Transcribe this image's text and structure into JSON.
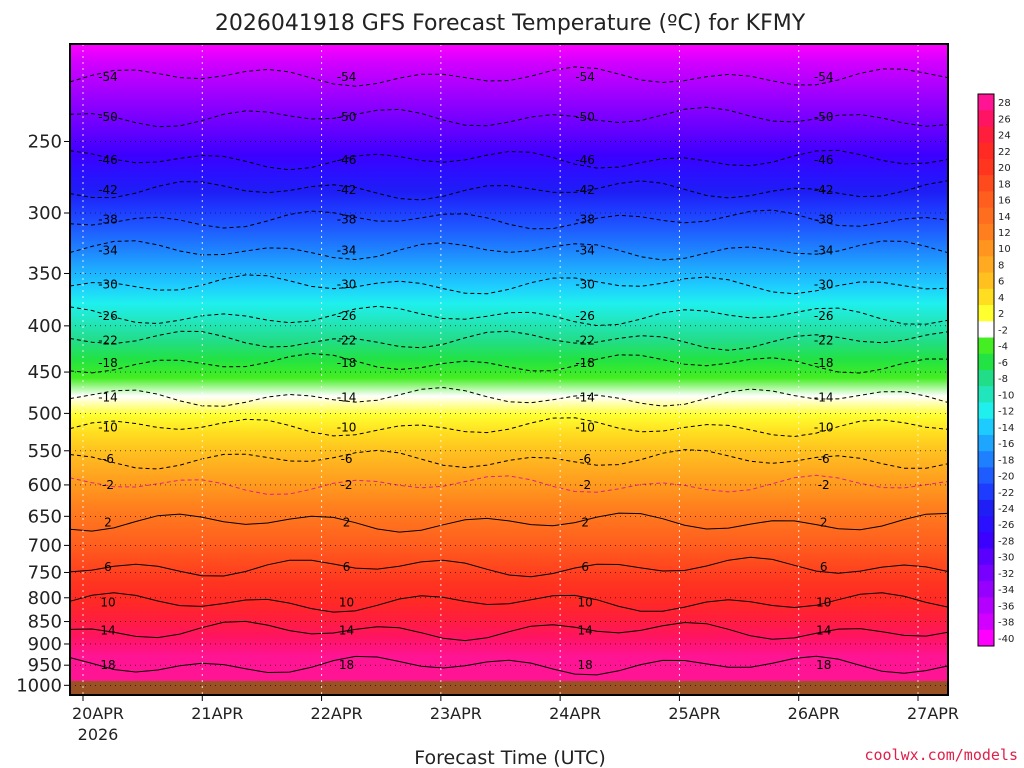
{
  "chart_data": {
    "type": "heatmap",
    "title": "2026041918 GFS Forecast Temperature (ºC) for KFMY",
    "xlabel": "Forecast Time (UTC)",
    "ylabel": "",
    "y_scale": "log",
    "y_inverted": true,
    "ylim": [
      1025,
      195
    ],
    "y_ticks": [
      250,
      300,
      350,
      400,
      450,
      500,
      550,
      600,
      650,
      700,
      750,
      800,
      850,
      900,
      950,
      1000
    ],
    "y_tick_labels": [
      "250",
      "300",
      "350",
      "400",
      "450",
      "500",
      "550",
      "600",
      "650",
      "700",
      "750",
      "800",
      "850",
      "900",
      "950",
      "1000"
    ],
    "x_ticks": [
      "20APR",
      "21APR",
      "22APR",
      "23APR",
      "24APR",
      "25APR",
      "26APR",
      "27APR"
    ],
    "x_tick_year": "2026",
    "grid": true,
    "colorbar": {
      "position": "right",
      "labels": [
        "28",
        "26",
        "24",
        "22",
        "20",
        "18",
        "16",
        "14",
        "12",
        "10",
        "8",
        "6",
        "4",
        "2",
        "-2",
        "-4",
        "-6",
        "-8",
        "-10",
        "-12",
        "-14",
        "-16",
        "-18",
        "-20",
        "-22",
        "-24",
        "-26",
        "-28",
        "-30",
        "-32",
        "-34",
        "-36",
        "-38",
        "-40"
      ],
      "colors": [
        "#ff1493",
        "#ff1463",
        "#ff1e3c",
        "#ff2a24",
        "#ff3520",
        "#ff4a1e",
        "#ff5e1e",
        "#ff6e1e",
        "#ff7f1e",
        "#ff951e",
        "#ffaa20",
        "#ffc020",
        "#ffdd20",
        "#ffff30",
        "#ffffff",
        "#44ee22",
        "#22e244",
        "#22dd88",
        "#22e6bb",
        "#1ff0ee",
        "#1ecbff",
        "#1ea6ff",
        "#1e7fff",
        "#1e5cff",
        "#1e3cff",
        "#1e1ef5",
        "#2a10ff",
        "#3c00ff",
        "#5a00ff",
        "#7800ff",
        "#9600ff",
        "#b400ff",
        "#d200ff",
        "#ff00ff"
      ]
    },
    "isotherms": [
      {
        "value": -54,
        "p": 212
      },
      {
        "value": -50,
        "p": 235
      },
      {
        "value": -46,
        "p": 262
      },
      {
        "value": -42,
        "p": 283
      },
      {
        "value": -38,
        "p": 305
      },
      {
        "value": -34,
        "p": 330
      },
      {
        "value": -30,
        "p": 360
      },
      {
        "value": -26,
        "p": 390
      },
      {
        "value": -22,
        "p": 415
      },
      {
        "value": -18,
        "p": 440
      },
      {
        "value": -14,
        "p": 480
      },
      {
        "value": -10,
        "p": 518
      },
      {
        "value": -6,
        "p": 562
      },
      {
        "value": -2,
        "p": 600
      },
      {
        "value": 2,
        "p": 660
      },
      {
        "value": 6,
        "p": 740
      },
      {
        "value": 10,
        "p": 810
      },
      {
        "value": 14,
        "p": 870
      },
      {
        "value": 18,
        "p": 950
      }
    ]
  },
  "credit": "coolwx.com/models"
}
